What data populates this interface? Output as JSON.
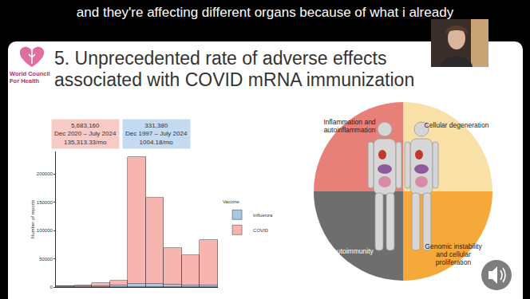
{
  "caption": "and they're affecting different organs because of what i already",
  "logo": {
    "lines": [
      "World Council",
      "For Health"
    ]
  },
  "title": [
    "5. Unprecedented rate of adverse effects",
    "associated with COVID mRNA immunization"
  ],
  "chart_data": {
    "type": "bar",
    "stacked": true,
    "categories": [
      null,
      null,
      null,
      null,
      null,
      null,
      null,
      null,
      null
    ],
    "series": [
      {
        "name": "Influenza",
        "color": "#a9c6e3",
        "values": [
          1000,
          1500,
          2000,
          3000,
          6000,
          6000,
          4000,
          3000,
          3000
        ]
      },
      {
        "name": "COVID",
        "color": "#f6b5ae",
        "values": [
          0,
          2000,
          5000,
          9000,
          224000,
          152000,
          65000,
          53000,
          81000
        ]
      }
    ],
    "ylabel": "Number of reports",
    "legend_title": "Vaccine",
    "legend": "right",
    "ylim": [
      0,
      240000
    ],
    "yticks": [
      0,
      50000,
      100000,
      150000,
      200000
    ],
    "grid": false,
    "tick_labels": "y",
    "annotations": [
      {
        "lines": [
          "5,683,160",
          "Dec 2020 – July 2024",
          "135,313.33/mo"
        ],
        "color": "#f9cbc7"
      },
      {
        "lines": [
          "331,380",
          "Dec 1997 – July 2024",
          "1004.18/mo"
        ],
        "color": "#c3daf0"
      }
    ]
  },
  "diagram": {
    "quadrants": [
      {
        "lines": [
          "Inflammation and",
          "autoinflammation"
        ],
        "color": "#e8807a"
      },
      {
        "lines": [
          "Cellular degeneration"
        ],
        "color": "#f8e0a6"
      },
      {
        "lines": [
          "Autoimmunity"
        ],
        "color": "#6e6e6e"
      },
      {
        "lines": [
          "Genomic instability",
          "and cellular",
          "proliferation"
        ],
        "color": "#f6a93b"
      }
    ]
  }
}
